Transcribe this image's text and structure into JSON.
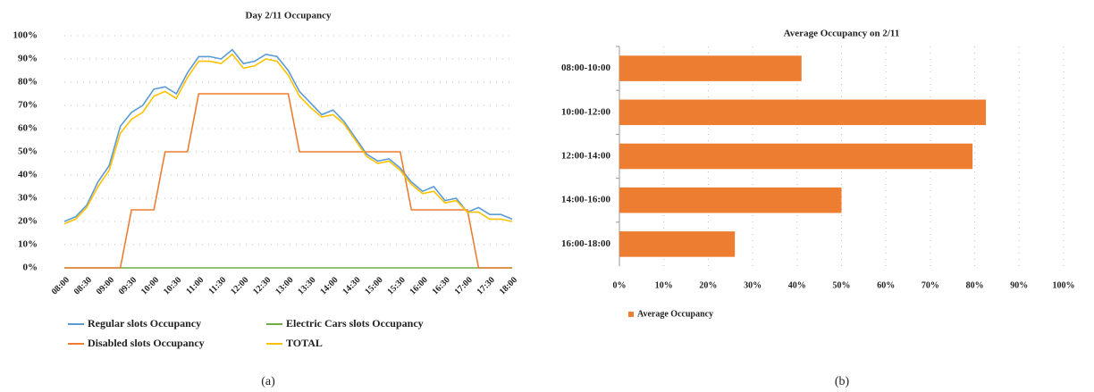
{
  "chart_data": [
    {
      "type": "line",
      "title": "Day 2/11 Occupancy",
      "caption": "(a)",
      "categories": [
        "08:00",
        null,
        "08:30",
        null,
        "09:00",
        null,
        "09:30",
        null,
        "10:00",
        null,
        "10:30",
        null,
        "11:00",
        null,
        "11:30",
        null,
        "12:00",
        null,
        "12:30",
        null,
        "13:00",
        null,
        "13:30",
        null,
        "14:00",
        null,
        "14:30",
        null,
        "15:00",
        null,
        "15:30",
        null,
        "16:00",
        null,
        "16:30",
        null,
        "17:00",
        null,
        "17:30",
        null,
        "18:00"
      ],
      "series": [
        {
          "name": "Regular slots Occupancy",
          "color": "#5b9bd5",
          "values": [
            20,
            22,
            27,
            37,
            44,
            61,
            67,
            70,
            77,
            78,
            75,
            84,
            91,
            91,
            90,
            94,
            88,
            89,
            92,
            91,
            85,
            76,
            71,
            66,
            68,
            63,
            56,
            49,
            46,
            47,
            43,
            37,
            33,
            35,
            29,
            30,
            24,
            26,
            23,
            23,
            21
          ]
        },
        {
          "name": "Electric Cars slots Occupancy",
          "color": "#70ad47",
          "values": [
            0,
            0,
            0,
            0,
            0,
            0,
            0,
            0,
            0,
            0,
            0,
            0,
            0,
            0,
            0,
            0,
            0,
            0,
            0,
            0,
            0,
            0,
            0,
            0,
            0,
            0,
            0,
            0,
            0,
            0,
            0,
            0,
            0,
            0,
            0,
            0,
            0,
            0,
            0,
            0,
            0
          ]
        },
        {
          "name": "Disabled slots Occupancy",
          "color": "#ed7d31",
          "values": [
            0,
            0,
            0,
            0,
            0,
            0,
            25,
            25,
            25,
            50,
            50,
            50,
            75,
            75,
            75,
            75,
            75,
            75,
            75,
            75,
            75,
            50,
            50,
            50,
            50,
            50,
            50,
            50,
            50,
            50,
            50,
            25,
            25,
            25,
            25,
            25,
            25,
            0,
            0,
            0,
            0
          ]
        },
        {
          "name": "TOTAL",
          "color": "#ffc000",
          "values": [
            19,
            21,
            26,
            35,
            42,
            58,
            64,
            67,
            74,
            76,
            73,
            82,
            89,
            89,
            88,
            92,
            86,
            87,
            90,
            89,
            83,
            74,
            69,
            65,
            66,
            62,
            55,
            48,
            45,
            46,
            42,
            36,
            32,
            33,
            28,
            29,
            24,
            24,
            21,
            21,
            20
          ]
        }
      ],
      "ylim": [
        0,
        100
      ],
      "yticks": [
        {
          "value": 0,
          "label": "0%"
        },
        {
          "value": 10,
          "label": "10%"
        },
        {
          "value": 20,
          "label": "20%"
        },
        {
          "value": 30,
          "label": "30%"
        },
        {
          "value": 40,
          "label": "40%"
        },
        {
          "value": 50,
          "label": "50%"
        },
        {
          "value": 60,
          "label": "60%"
        },
        {
          "value": 70,
          "label": "70%"
        },
        {
          "value": 80,
          "label": "80%"
        },
        {
          "value": 90,
          "label": "90%"
        },
        {
          "value": 100,
          "label": "100%"
        }
      ],
      "grid": true,
      "legend": "bottom"
    },
    {
      "type": "bar",
      "orientation": "horizontal",
      "title": "Average Occupancy on 2/11",
      "caption": "(b)",
      "categories": [
        "08:00-10:00",
        "10:00-12:00",
        "12:00-14:00",
        "14:00-16:00",
        "16:00-18:00"
      ],
      "series": [
        {
          "name": "Average Occupancy",
          "color": "#ed7d31",
          "values": [
            41,
            82.5,
            79.5,
            50,
            26
          ]
        }
      ],
      "xlim": [
        0,
        100
      ],
      "xticks": [
        {
          "value": 0,
          "label": "0%"
        },
        {
          "value": 10,
          "label": "10%"
        },
        {
          "value": 20,
          "label": "20%"
        },
        {
          "value": 30,
          "label": "30%"
        },
        {
          "value": 40,
          "label": "40%"
        },
        {
          "value": 50,
          "label": "50%"
        },
        {
          "value": 60,
          "label": "60%"
        },
        {
          "value": 70,
          "label": "70%"
        },
        {
          "value": 80,
          "label": "80%"
        },
        {
          "value": 90,
          "label": "90%"
        },
        {
          "value": 100,
          "label": "100%"
        }
      ],
      "grid": true,
      "legend": "bottom"
    }
  ]
}
